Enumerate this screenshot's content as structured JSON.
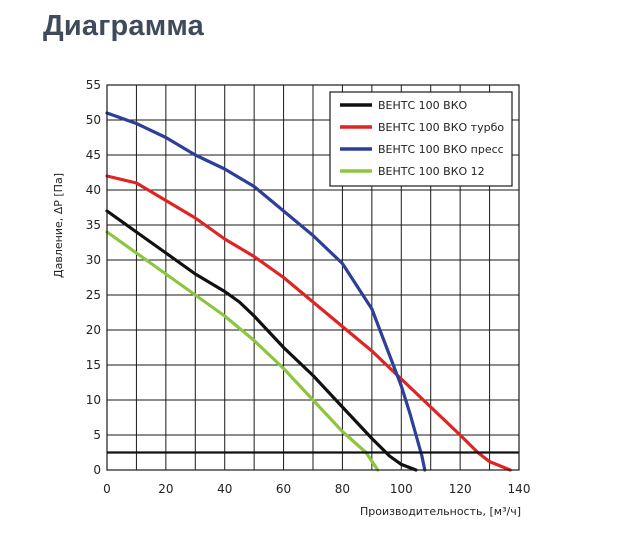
{
  "page": {
    "section_title": "Диаграмма"
  },
  "chart_data": {
    "type": "line",
    "xlabel": "Производительность, [м³/ч]",
    "ylabel": "Давление, ΔР [Па]",
    "xlim": [
      0,
      140
    ],
    "ylim": [
      0,
      55
    ],
    "x_ticks": [
      0,
      20,
      40,
      60,
      80,
      100,
      120,
      140
    ],
    "y_ticks": [
      0,
      5,
      10,
      15,
      20,
      25,
      30,
      35,
      40,
      45,
      50,
      55
    ],
    "x_tick_labels": [
      "0",
      "20",
      "40",
      "60",
      "80",
      "100",
      "120",
      "140"
    ],
    "y_tick_labels": [
      "0",
      "5",
      "10",
      "15",
      "20",
      "25",
      "30",
      "35",
      "40",
      "45",
      "50",
      "55"
    ],
    "grid": true,
    "legend_position": "top-right",
    "series": [
      {
        "name": "ВЕНТС 100 ВКО",
        "color": "#111111",
        "x": [
          0,
          10,
          20,
          30,
          40,
          45,
          50,
          60,
          70,
          80,
          90,
          96,
          100,
          105
        ],
        "y": [
          37,
          34,
          31,
          28,
          25.5,
          24,
          22,
          17.5,
          13.5,
          9,
          4.5,
          2,
          0.8,
          0
        ]
      },
      {
        "name": "ВЕНТС 100 ВКО турбо",
        "color": "#e02424",
        "x": [
          0,
          10,
          20,
          30,
          40,
          50,
          60,
          70,
          80,
          90,
          100,
          110,
          120,
          126,
          130,
          137
        ],
        "y": [
          42,
          41,
          38.5,
          36,
          33,
          30.5,
          27.5,
          24,
          20.5,
          17,
          13,
          9,
          5,
          2.5,
          1.2,
          0
        ]
      },
      {
        "name": "ВЕНТС 100 ВКО пресс",
        "color": "#2e3f9a",
        "x": [
          0,
          10,
          20,
          30,
          40,
          50,
          60,
          70,
          80,
          90,
          95,
          100,
          103,
          105,
          107,
          108
        ],
        "y": [
          51,
          49.5,
          47.5,
          45,
          43,
          40.5,
          37,
          33.5,
          29.5,
          23,
          17.5,
          12,
          8,
          5,
          2,
          0
        ]
      },
      {
        "name": "ВЕНТС 100 ВКО 12",
        "color": "#8cc63f",
        "x": [
          0,
          10,
          20,
          30,
          40,
          50,
          60,
          70,
          80,
          88,
          92
        ],
        "y": [
          34,
          31,
          28,
          25,
          22,
          18.5,
          14.5,
          10,
          5.5,
          2.5,
          0
        ]
      }
    ],
    "reference_lines": [
      {
        "y": 2.5,
        "color": "#111111"
      }
    ]
  }
}
